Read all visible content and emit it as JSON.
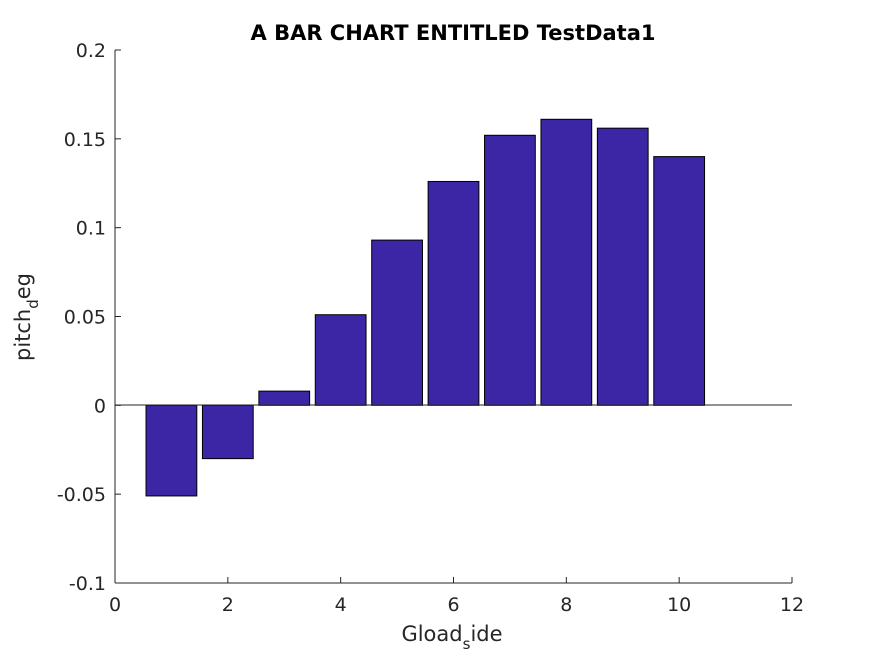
{
  "chart_data": {
    "type": "bar",
    "title": "A BAR CHART ENTITLED TestData1",
    "xlabel": {
      "main": "Gload",
      "sub": "s",
      "tail": "ide"
    },
    "ylabel": {
      "main": "pitch",
      "sub": "d",
      "tail": "eg"
    },
    "x": [
      1,
      2,
      3,
      4,
      5,
      6,
      7,
      8,
      9,
      10
    ],
    "values": [
      -0.051,
      -0.03,
      0.008,
      0.051,
      0.093,
      0.126,
      0.152,
      0.161,
      0.156,
      0.14
    ],
    "xlim": [
      0,
      12
    ],
    "ylim": [
      -0.1,
      0.2
    ],
    "xticks": [
      "0",
      "2",
      "4",
      "6",
      "8",
      "10",
      "12"
    ],
    "yticks": [
      "-0.1",
      "-0.05",
      "0",
      "0.05",
      "0.1",
      "0.15",
      "0.2"
    ],
    "bar_color": "#3c26a6",
    "grid": false,
    "legend": "none"
  }
}
